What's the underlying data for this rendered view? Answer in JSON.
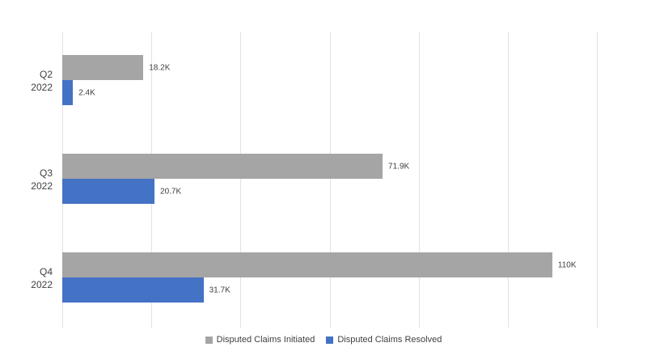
{
  "chart_data": {
    "type": "bar",
    "orientation": "horizontal",
    "title": "",
    "categories": [
      {
        "line1": "Q2",
        "line2": "2022"
      },
      {
        "line1": "Q3",
        "line2": "2022"
      },
      {
        "line1": "Q4",
        "line2": "2022"
      }
    ],
    "series": [
      {
        "name": "Disputed Claims Initiated",
        "color": "#a5a5a5",
        "values": [
          18200,
          71900,
          110000
        ],
        "labels": [
          "18.2K",
          "71.9K",
          "110K"
        ]
      },
      {
        "name": "Disputed Claims Resolved",
        "color": "#4472c4",
        "values": [
          2400,
          20700,
          31700
        ],
        "labels": [
          "2.4K",
          "20.7K",
          "31.7K"
        ]
      }
    ],
    "xlim": [
      0,
      120000
    ],
    "gridline_step": 20000,
    "grid": true,
    "legend_position": "bottom",
    "colors": {
      "background": "#ffffff",
      "gridline": "#e2e2e2",
      "text": "#404040"
    }
  }
}
